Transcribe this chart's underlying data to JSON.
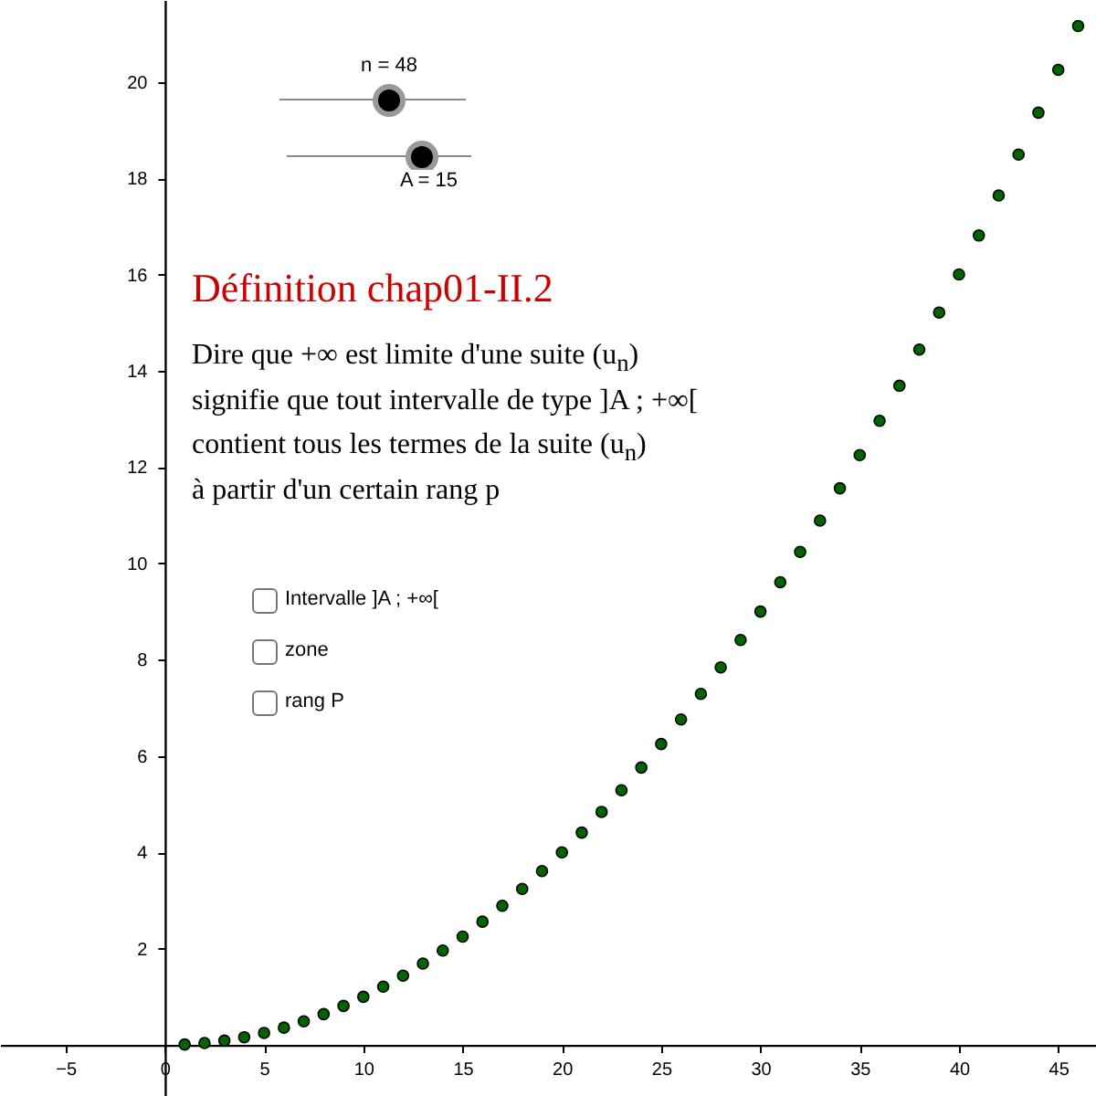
{
  "chart_data": {
    "type": "scatter",
    "title": "Définition chap01-II.2",
    "annotations": [
      "n = 48",
      "A = 15",
      "Dire que +∞ est limite d'une suite (u$_{n}$)",
      "signifie que tout intervalle de type ]A ; +∞[",
      "contient tous les termes de la suite (u$_{n}$)",
      "à partir d'un certain rang p",
      "Intervalle ]A ; +∞[",
      "zone",
      "rang P"
    ],
    "x": [
      1,
      2,
      3,
      4,
      5,
      6,
      7,
      8,
      9,
      10,
      11,
      12,
      13,
      14,
      15,
      16,
      17,
      18,
      19,
      20,
      21,
      22,
      23,
      24,
      25,
      26,
      27,
      28,
      29,
      30,
      31,
      32,
      33,
      34,
      35,
      36,
      37,
      38,
      39,
      40,
      41,
      42,
      43,
      44,
      45,
      46
    ],
    "series": [
      {
        "color": "#006400",
        "values": [
          0.01,
          0.04,
          0.09,
          0.16,
          0.25,
          0.36,
          0.49,
          0.64,
          0.81,
          1,
          1.21,
          1.44,
          1.69,
          1.96,
          2.25,
          2.56,
          2.89,
          3.24,
          3.61,
          4,
          4.41,
          4.84,
          5.29,
          5.76,
          6.25,
          6.76,
          7.29,
          7.84,
          8.41,
          9,
          9.61,
          10.24,
          10.89,
          11.56,
          12.25,
          12.96,
          13.69,
          14.44,
          15.21,
          16,
          16.81,
          17.64,
          18.49,
          19.36,
          20.25,
          21.16
        ]
      }
    ],
    "xlim": [
      -8.3,
      46.9
    ],
    "ylim": [
      -1.06,
      21.7
    ],
    "xticks": [
      -5,
      0,
      5,
      10,
      15,
      20,
      25,
      30,
      35,
      40,
      45
    ],
    "yticks": [
      2,
      4,
      6,
      8,
      10,
      12,
      14,
      16,
      18,
      20
    ],
    "grid": false,
    "marker": "circle"
  }
}
